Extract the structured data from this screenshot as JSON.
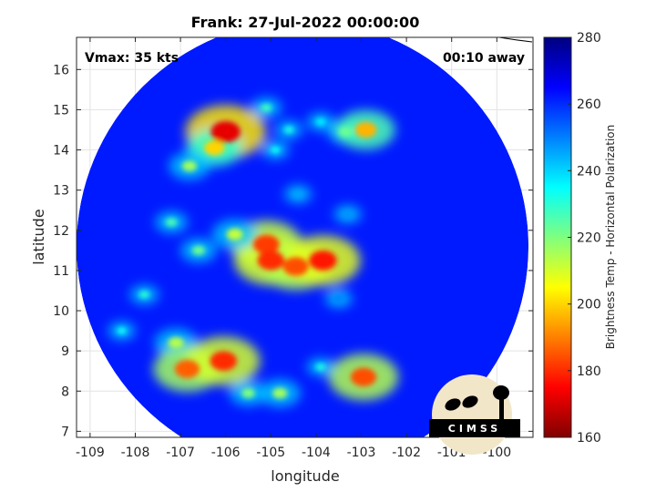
{
  "chart_data": {
    "type": "heatmap",
    "title": "Frank: 27-Jul-2022 00:00:00",
    "xlabel": "longitude",
    "ylabel": "latitude",
    "xlim": [
      -109.3,
      -99.2
    ],
    "ylim": [
      6.85,
      16.8
    ],
    "x_ticks": [
      -109,
      -108,
      -107,
      -106,
      -105,
      -104,
      -103,
      -102,
      -101,
      -100
    ],
    "x_tick_labels": [
      "-109",
      "-108",
      "-107",
      "-106",
      "-105",
      "-104",
      "-103",
      "-102",
      "-101",
      "-100"
    ],
    "y_ticks": [
      7,
      8,
      9,
      10,
      11,
      12,
      13,
      14,
      15,
      16
    ],
    "y_tick_labels": [
      "7",
      "8",
      "9",
      "10",
      "11",
      "12",
      "13",
      "14",
      "15",
      "16"
    ],
    "grid": true,
    "annotations": {
      "vmax": "Vmax: 35 kts",
      "time_away": "00:10 away"
    },
    "colorbar": {
      "label": "Brightness Temp - Horizontal Polarization",
      "range": [
        160,
        280
      ],
      "ticks": [
        160,
        180,
        200,
        220,
        240,
        260,
        280
      ],
      "tick_labels": [
        "160",
        "180",
        "200",
        "220",
        "240",
        "260",
        "280"
      ],
      "colormap": "jet"
    },
    "swath": {
      "center_lon": -104.3,
      "center_lat": 11.6,
      "radius_deg": 5.0,
      "background_value": 262
    },
    "features": [
      {
        "lon": -106.0,
        "lat": 14.45,
        "value": 172
      },
      {
        "lon": -106.25,
        "lat": 14.05,
        "value": 200
      },
      {
        "lon": -106.8,
        "lat": 13.6,
        "value": 216
      },
      {
        "lon": -105.1,
        "lat": 15.05,
        "value": 228
      },
      {
        "lon": -104.6,
        "lat": 14.5,
        "value": 232
      },
      {
        "lon": -103.9,
        "lat": 14.7,
        "value": 236
      },
      {
        "lon": -103.35,
        "lat": 14.45,
        "value": 222
      },
      {
        "lon": -102.9,
        "lat": 14.5,
        "value": 196
      },
      {
        "lon": -104.9,
        "lat": 14.0,
        "value": 234
      },
      {
        "lon": -105.1,
        "lat": 11.65,
        "value": 182
      },
      {
        "lon": -105.0,
        "lat": 11.25,
        "value": 180
      },
      {
        "lon": -104.45,
        "lat": 11.1,
        "value": 184
      },
      {
        "lon": -103.85,
        "lat": 11.25,
        "value": 178
      },
      {
        "lon": -105.8,
        "lat": 11.9,
        "value": 212
      },
      {
        "lon": -106.6,
        "lat": 11.5,
        "value": 222
      },
      {
        "lon": -107.2,
        "lat": 12.2,
        "value": 226
      },
      {
        "lon": -107.8,
        "lat": 10.4,
        "value": 230
      },
      {
        "lon": -107.1,
        "lat": 9.2,
        "value": 214
      },
      {
        "lon": -106.85,
        "lat": 8.55,
        "value": 186
      },
      {
        "lon": -106.05,
        "lat": 8.75,
        "value": 180
      },
      {
        "lon": -105.5,
        "lat": 7.95,
        "value": 220
      },
      {
        "lon": -104.8,
        "lat": 7.95,
        "value": 216
      },
      {
        "lon": -102.95,
        "lat": 8.35,
        "value": 184
      },
      {
        "lon": -103.9,
        "lat": 8.6,
        "value": 232
      },
      {
        "lon": -108.3,
        "lat": 9.5,
        "value": 234
      },
      {
        "lon": -104.4,
        "lat": 12.9,
        "value": 246
      },
      {
        "lon": -103.3,
        "lat": 12.4,
        "value": 248
      },
      {
        "lon": -103.5,
        "lat": 10.3,
        "value": 250
      }
    ]
  },
  "logo": {
    "text": "CIMSS"
  }
}
